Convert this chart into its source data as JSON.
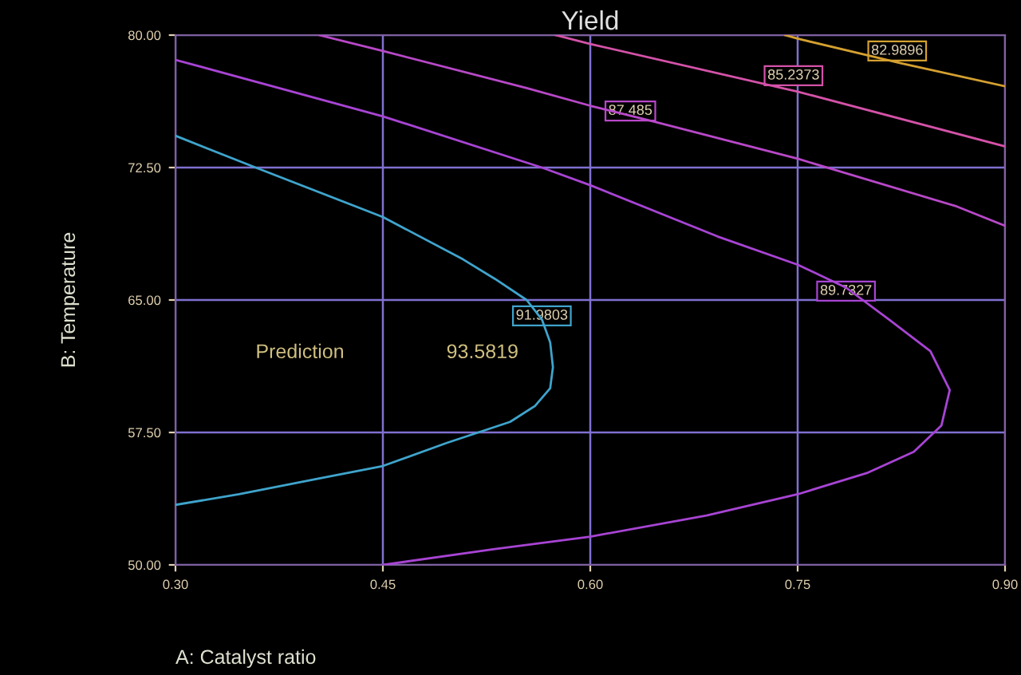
{
  "chart_data": {
    "type": "line",
    "title": "Yield",
    "xlabel": "A: Catalyst ratio",
    "ylabel": "B: Temperature",
    "xlim": [
      0.3,
      0.9
    ],
    "ylim": [
      50,
      80
    ],
    "xticks": [
      {
        "value": 0.3,
        "label": "0.30"
      },
      {
        "value": 0.45,
        "label": "0.45"
      },
      {
        "value": 0.6,
        "label": "0.60"
      },
      {
        "value": 0.75,
        "label": "0.75"
      },
      {
        "value": 0.9,
        "label": "0.90"
      }
    ],
    "yticks": [
      {
        "value": 50,
        "label": "50.00"
      },
      {
        "value": 57.5,
        "label": "57.50"
      },
      {
        "value": 65,
        "label": "65.00"
      },
      {
        "value": 72.5,
        "label": "72.50"
      },
      {
        "value": 80,
        "label": "80.00"
      }
    ],
    "grid": true,
    "marker": "none",
    "line_style": "solid",
    "series": [
      {
        "color": "#3fa4cc",
        "x": [
          0.3,
          0.358,
          0.45,
          0.508,
          0.531,
          0.554,
          0.565,
          0.571,
          0.573,
          0.571,
          0.56,
          0.542,
          0.519,
          0.496,
          0.45,
          0.404,
          0.346,
          0.3
        ],
        "values": [
          74.3,
          72.5,
          69.7,
          67.3,
          66.2,
          65.0,
          63.9,
          62.6,
          61.2,
          60.0,
          59.0,
          58.1,
          57.5,
          56.9,
          55.6,
          54.9,
          54.0,
          53.4
        ]
      },
      {
        "color": "#a844d4",
        "x": [
          0.3,
          0.45,
          0.565,
          0.6,
          0.692,
          0.75,
          0.785,
          0.816,
          0.846,
          0.86,
          0.854,
          0.834,
          0.8,
          0.75,
          0.684,
          0.6,
          0.531,
          0.45
        ],
        "values": [
          78.6,
          75.4,
          72.5,
          71.5,
          68.6,
          67.0,
          65.7,
          63.9,
          62.1,
          59.9,
          57.9,
          56.4,
          55.2,
          54.0,
          52.8,
          51.6,
          50.9,
          50.0
        ]
      },
      {
        "color": "#b848c8",
        "x": [
          0.404,
          0.45,
          0.554,
          0.6,
          0.646,
          0.75,
          0.865,
          0.9
        ],
        "values": [
          80.0,
          79.1,
          77.0,
          76.0,
          75.1,
          73.0,
          70.3,
          69.2
        ]
      },
      {
        "color": "#d452a8",
        "x": [
          0.575,
          0.6,
          0.75,
          0.9
        ],
        "values": [
          80.0,
          79.5,
          76.8,
          73.7
        ]
      },
      {
        "color": "#d4a030",
        "x": [
          0.741,
          0.75,
          0.825,
          0.9
        ],
        "values": [
          80.0,
          79.8,
          78.4,
          77.1
        ]
      }
    ],
    "annotations": [
      {
        "text": "91.9803",
        "x": 0.565,
        "y": 64.1
      },
      {
        "text": "89.7327",
        "x": 0.785,
        "y": 65.5
      },
      {
        "text": "87.485",
        "x": 0.629,
        "y": 75.7
      },
      {
        "text": "85.2373",
        "x": 0.747,
        "y": 77.7
      },
      {
        "text": "82.9896",
        "x": 0.822,
        "y": 79.1
      },
      "Prediction",
      "93.5819"
    ]
  }
}
